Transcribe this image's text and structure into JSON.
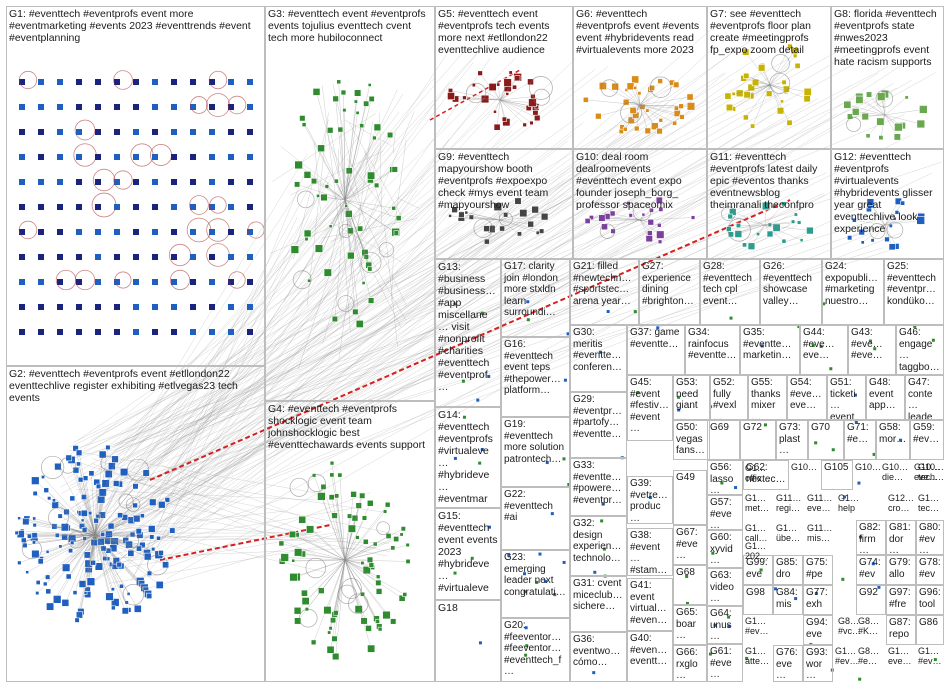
{
  "groups": [
    {
      "id": "G1",
      "text": "G1: #eventtech #eventprofs event more #eventmarketing #events 2023 #eventtrends #event #eventplanning"
    },
    {
      "id": "G2",
      "text": "G2: #eventtech #eventprofs event #etllondon22 eventtechlive register exhibiting #etlvegas23 tech events"
    },
    {
      "id": "G3",
      "text": "G3: #eventtech event #eventprofs events tojulius eventtech cvent tech more hubiloconnect"
    },
    {
      "id": "G4",
      "text": "G4: #eventtech #eventprofs shocklogic event team johnshocklogic best #eventtechawards events support"
    },
    {
      "id": "G5",
      "text": "G5: #eventtech event #eventprofs tech events more next #etllondon22 eventtechlive audience"
    },
    {
      "id": "G6",
      "text": "G6: #eventtech #eventprofs event #events event #hybridevents read #virtualevents more 2023"
    },
    {
      "id": "G7",
      "text": "G7: see #eventtech #eventprofs floor plan create #meetingprofs fp_expo zoom detail"
    },
    {
      "id": "G8",
      "text": "G8: florida #eventtech #eventprofs state #nwes2023 #meetingprofs event hate racism supports"
    },
    {
      "id": "G9",
      "text": "G9: #eventtech mapyourshow booth #eventprofs #expoexpo check #mys event team #mapyourshow"
    },
    {
      "id": "G10",
      "text": "G10: deal room dealroomevents #eventtech event expo founder joseph_borg_ professor spaceomix"
    },
    {
      "id": "G11",
      "text": "G11: #eventtech #eventprofs latest daily epic #eventos thanks eventnewsblog theimranali theconfpro"
    },
    {
      "id": "G12",
      "text": "G12: #eventtech #eventprofs #virtualevents #hybridevents glisser year great eventtechlive look experience"
    },
    {
      "id": "G13",
      "text": "G13: #business #business… #app miscellane… visit #nonprofit #charities #eventtech #eventprof…"
    },
    {
      "id": "G14",
      "text": "G14: #eventtech #eventprofs #virtualeve… #hybrideve… #eventmar… #events…"
    },
    {
      "id": "G15",
      "text": "G15: #eventtech event events 2023 #hybrideve… #virtualeve…"
    },
    {
      "id": "G16",
      "text": "G16: #eventtech event teps #thepower… platform…"
    },
    {
      "id": "G17",
      "text": "G17: clarity join #london more stxldn learn surroundi…"
    },
    {
      "id": "G18",
      "text": "G18"
    },
    {
      "id": "G19",
      "text": "G19: #eventtech more solution patrontech…"
    },
    {
      "id": "G20",
      "text": "G20: #feeventor… #feeventor… #eventtech_f…"
    },
    {
      "id": "G21",
      "text": "G21: filled #newtechn… #sportstec… arena year…"
    },
    {
      "id": "G22",
      "text": "G22: #eventtech #ai"
    },
    {
      "id": "G23",
      "text": "G23: emerging leader next congratulati…"
    },
    {
      "id": "G24",
      "text": "G24: expopubli… #marketing nuestro…"
    },
    {
      "id": "G25",
      "text": "G25: #eventtech #eventpr… kondüko…"
    },
    {
      "id": "G26",
      "text": "G26: #eventtech showcase valley…"
    },
    {
      "id": "G27",
      "text": "G27: experience dining #brighton…"
    },
    {
      "id": "G28",
      "text": "G28: #eventtech tech cpl event…"
    },
    {
      "id": "G29",
      "text": "G29: #eventpr… #partofy… #eventte…"
    },
    {
      "id": "G30",
      "text": "G30: meritis #eventte… conferen…"
    },
    {
      "id": "G31",
      "text": "G31: cvent miceclub… sichere…"
    },
    {
      "id": "G32",
      "text": "G32: design experien… technolo…"
    },
    {
      "id": "G33",
      "text": "G33: #eventte… #powere… #eventpr…"
    },
    {
      "id": "G34",
      "text": "G34: rainfocus #eventte…"
    },
    {
      "id": "G35",
      "text": "G35: #eventte… marketin…"
    },
    {
      "id": "G36",
      "text": "G36: eventwo… cómo…"
    },
    {
      "id": "G37",
      "text": "G37: game #eventte…"
    },
    {
      "id": "G38",
      "text": "G38: #event… #stam…"
    },
    {
      "id": "G39",
      "text": "G39: #vetre… produc…"
    },
    {
      "id": "G40",
      "text": "G40: #even… eventt…"
    },
    {
      "id": "G41",
      "text": "G41: event virtual… #even…"
    },
    {
      "id": "G42",
      "text": "G42"
    },
    {
      "id": "G43",
      "text": "G43: #eve… #eve…"
    },
    {
      "id": "G44",
      "text": "G44: #eve… eve…"
    },
    {
      "id": "G45",
      "text": "G45: #event #festiv… #event…"
    },
    {
      "id": "G46",
      "text": "G46: engage… taggbo…"
    },
    {
      "id": "G47",
      "text": "G47: conte… leade…"
    },
    {
      "id": "G48",
      "text": "G48: event app…"
    },
    {
      "id": "G49",
      "text": "G49"
    },
    {
      "id": "G50",
      "text": "G50: vegas fans…"
    },
    {
      "id": "G51",
      "text": "G51: ticketi… event…"
    },
    {
      "id": "G52",
      "text": "G52: fully #vexl…"
    },
    {
      "id": "G53",
      "text": "G53: need giant…"
    },
    {
      "id": "G54",
      "text": "G54: #eve… eve…"
    },
    {
      "id": "G55",
      "text": "G55: thanks mixer…"
    },
    {
      "id": "G56",
      "text": "G56: lasso…"
    },
    {
      "id": "G57",
      "text": "G57: #eve…"
    },
    {
      "id": "G58",
      "text": "G58: mor…"
    },
    {
      "id": "G59",
      "text": "G59: #ev…"
    },
    {
      "id": "G60",
      "text": "G60: xyvid…"
    },
    {
      "id": "G61",
      "text": "G61: #eve…"
    },
    {
      "id": "G62",
      "text": "G62: nextec…"
    },
    {
      "id": "G63",
      "text": "G63: video…"
    },
    {
      "id": "G64",
      "text": "G64: unus…"
    },
    {
      "id": "G65",
      "text": "G65: boar…"
    },
    {
      "id": "G66",
      "text": "G66: rxglo…"
    },
    {
      "id": "G67",
      "text": "G67: #eve…"
    },
    {
      "id": "G68",
      "text": "G68"
    },
    {
      "id": "G69",
      "text": "G69"
    },
    {
      "id": "G70",
      "text": "G70"
    },
    {
      "id": "G71",
      "text": "G71: #e…"
    },
    {
      "id": "G72",
      "text": "G72"
    },
    {
      "id": "G73",
      "text": "G73: plast…"
    },
    {
      "id": "G74",
      "text": "G74: #ev…"
    },
    {
      "id": "G75",
      "text": "G75: #pe…"
    },
    {
      "id": "G76",
      "text": "G76: eve…"
    },
    {
      "id": "G77",
      "text": "G77: exh…"
    },
    {
      "id": "G78",
      "text": "G78: #ev…"
    },
    {
      "id": "G79",
      "text": "G79: allo…"
    },
    {
      "id": "G80",
      "text": "G80: #ev…"
    },
    {
      "id": "G81",
      "text": "G81: dor…"
    },
    {
      "id": "G82",
      "text": "G82: firm…"
    },
    {
      "id": "G83",
      "text": "G83: #ev…"
    },
    {
      "id": "G84",
      "text": "G84: mis…"
    },
    {
      "id": "G85",
      "text": "G85: dro…"
    },
    {
      "id": "G86",
      "text": "G86"
    },
    {
      "id": "G87",
      "text": "G87: repo…"
    },
    {
      "id": "G92",
      "text": "G92"
    },
    {
      "id": "G93",
      "text": "G93: wor…"
    },
    {
      "id": "G94",
      "text": "G94: eve…"
    },
    {
      "id": "G96",
      "text": "G96: tool…"
    },
    {
      "id": "G97",
      "text": "G97: #fre…"
    },
    {
      "id": "G98",
      "text": "G98"
    },
    {
      "id": "G99",
      "text": "G99: eve…"
    },
    {
      "id": "G105",
      "text": "G105"
    }
  ],
  "truncated_labels": [
    "G10…",
    "G10…",
    "G1… offic…",
    "G10… die…",
    "G10… eve…",
    "G10… tech…",
    "G1… met…",
    "G11… regi…",
    "G11… eve…",
    "G1… help",
    "G12… cro…",
    "G1… tec…",
    "G1… call…",
    "G1… übe…",
    "G11… mis…",
    "G1… 202…",
    "G8… #vc…",
    "G8… #e…",
    "G1… #ev…",
    "G1… atte…",
    "G1… eve…",
    "G1… #ev…",
    "G8… #K…",
    "G1… #ev…"
  ],
  "colors": {
    "border": "#bdbdbd",
    "edge": "#8a8a8a",
    "highlight_edge": "#d62020",
    "node_blue": "#1f5fbf",
    "node_green": "#2e8b2e",
    "node_teal": "#2a9d8f",
    "node_navy": "#1a237e"
  },
  "icons": [
    "profile-avatar-icon",
    "self-loop-icon",
    "network-node-icon"
  ]
}
